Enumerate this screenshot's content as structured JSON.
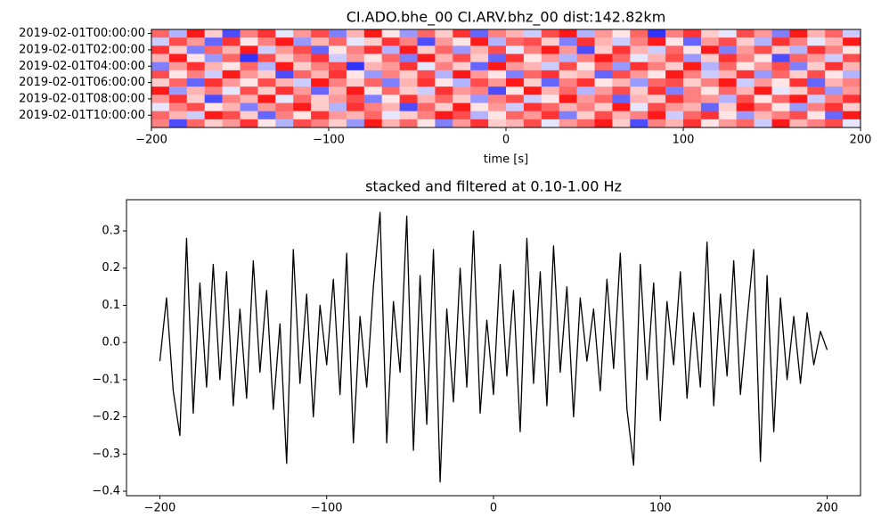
{
  "chart_data": [
    {
      "type": "heatmap",
      "title": "CI.ADO.bhe_00 CI.ARV.bhz_00  dist:142.82km",
      "xlabel": "time [s]",
      "xlim": [
        -200,
        200
      ],
      "xticks": [
        {
          "value": -200,
          "label": "−200"
        },
        {
          "value": -100,
          "label": "−100"
        },
        0,
        100,
        200
      ],
      "rows": [
        "2019-02-01T00:00:00",
        null,
        "2019-02-01T02:00:00",
        null,
        "2019-02-01T04:00:00",
        null,
        "2019-02-01T06:00:00",
        null,
        "2019-02-01T08:00:00",
        null,
        "2019-02-01T10:00:00",
        null
      ],
      "x": [
        -195,
        -185,
        -175,
        -165,
        -155,
        -145,
        -135,
        -125,
        -115,
        -105,
        -95,
        -85,
        -75,
        -65,
        -55,
        -45,
        -35,
        -25,
        -15,
        -5,
        5,
        15,
        25,
        35,
        45,
        55,
        65,
        75,
        85,
        95,
        105,
        115,
        125,
        135,
        145,
        155,
        165,
        175,
        185,
        195
      ],
      "zlim": [
        -1,
        1
      ],
      "colormap": [
        "#0000ff",
        "#ffffff",
        "#ff0000"
      ],
      "z": [
        [
          0.6,
          -0.3,
          0.9,
          0.2,
          -0.7,
          0.5,
          0.8,
          -0.1,
          0.4,
          0.7,
          -0.5,
          0.3,
          0.9,
          0.1,
          -0.4,
          0.6,
          0.2,
          0.8,
          -0.6,
          0.5,
          0.3,
          -0.2,
          0.7,
          0.9,
          -0.3,
          0.4,
          0.1,
          0.6,
          -0.8,
          0.5,
          0.8,
          0.2,
          -0.1,
          0.7,
          0.4,
          -0.5,
          0.9,
          0.3,
          0.6,
          -0.2
        ],
        [
          -0.2,
          0.7,
          0.4,
          -0.6,
          0.8,
          0.1,
          0.5,
          0.9,
          -0.4,
          0.3,
          0.6,
          -0.1,
          0.2,
          0.8,
          0.5,
          -0.7,
          0.4,
          0.1,
          0.9,
          -0.3,
          0.6,
          0.7,
          0.2,
          -0.5,
          0.8,
          0.3,
          -0.2,
          0.5,
          0.9,
          0.1,
          -0.6,
          0.4,
          0.7,
          0.2,
          -0.3,
          0.8,
          0.5,
          -0.1,
          0.3,
          0.9
        ],
        [
          0.8,
          0.2,
          -0.5,
          0.6,
          0.3,
          0.9,
          -0.2,
          0.4,
          0.7,
          -0.6,
          0.1,
          0.5,
          0.8,
          -0.3,
          0.9,
          0.2,
          0.6,
          -0.4,
          0.3,
          0.7,
          -0.1,
          0.5,
          0.9,
          0.4,
          -0.7,
          0.2,
          0.8,
          0.3,
          -0.2,
          0.6,
          0.1,
          0.9,
          -0.5,
          0.4,
          0.7,
          0.2,
          -0.3,
          0.8,
          0.5,
          0.1
        ],
        [
          0.3,
          0.9,
          0.1,
          -0.4,
          0.6,
          -0.8,
          0.7,
          0.2,
          0.5,
          0.8,
          -0.2,
          0.4,
          0.1,
          0.6,
          -0.5,
          0.9,
          0.3,
          0.7,
          0.2,
          -0.6,
          0.8,
          0.1,
          0.4,
          -0.3,
          0.5,
          0.9,
          0.6,
          -0.1,
          0.3,
          0.7,
          -0.4,
          0.2,
          0.8,
          0.5,
          0.1,
          -0.7,
          0.6,
          0.4,
          -0.2,
          0.7
        ],
        [
          -0.5,
          0.4,
          0.8,
          0.3,
          0.1,
          0.6,
          -0.3,
          0.9,
          0.2,
          0.5,
          0.7,
          -0.8,
          0.3,
          0.4,
          0.8,
          -0.1,
          0.5,
          0.2,
          -0.6,
          0.9,
          0.4,
          0.3,
          -0.2,
          0.7,
          0.1,
          0.6,
          -0.4,
          0.8,
          0.5,
          0.2,
          0.9,
          -0.3,
          0.6,
          0.1,
          0.4,
          0.7,
          -0.5,
          0.2,
          0.8,
          0.3
        ],
        [
          0.7,
          0.1,
          0.5,
          -0.2,
          0.9,
          0.4,
          0.2,
          -0.7,
          0.6,
          0.3,
          0.8,
          0.1,
          -0.4,
          0.5,
          0.2,
          0.7,
          -0.3,
          0.9,
          0.4,
          0.1,
          -0.5,
          0.6,
          0.8,
          0.2,
          0.3,
          -0.6,
          0.7,
          0.4,
          0.1,
          0.9,
          0.5,
          -0.2,
          0.3,
          0.8,
          -0.4,
          0.6,
          0.2,
          0.7,
          0.1,
          -0.3
        ],
        [
          0.2,
          0.6,
          -0.6,
          0.8,
          0.4,
          0.1,
          0.7,
          0.3,
          -0.2,
          0.9,
          0.5,
          0.2,
          0.6,
          -0.5,
          0.3,
          0.8,
          0.1,
          -0.3,
          0.7,
          0.4,
          0.9,
          0.2,
          -0.6,
          0.5,
          0.8,
          0.1,
          0.3,
          -0.4,
          0.6,
          0.7,
          0.2,
          0.5,
          0.9,
          -0.2,
          0.4,
          0.1,
          0.8,
          -0.6,
          0.3,
          0.5
        ],
        [
          0.9,
          -0.4,
          0.3,
          0.5,
          -0.1,
          0.7,
          0.2,
          0.8,
          0.4,
          -0.6,
          0.3,
          0.9,
          0.1,
          0.6,
          0.2,
          -0.2,
          0.8,
          0.4,
          0.5,
          -0.7,
          0.1,
          0.9,
          0.3,
          0.6,
          -0.3,
          0.4,
          0.7,
          0.2,
          0.8,
          -0.5,
          0.5,
          0.1,
          0.6,
          0.3,
          0.9,
          -0.1,
          0.2,
          0.7,
          -0.4,
          0.4
        ],
        [
          0.4,
          0.8,
          0.2,
          -0.7,
          0.5,
          0.3,
          0.9,
          -0.1,
          0.6,
          0.2,
          0.4,
          0.7,
          -0.5,
          0.1,
          0.8,
          0.3,
          0.6,
          0.2,
          -0.4,
          0.5,
          0.7,
          -0.2,
          0.1,
          0.9,
          0.4,
          0.6,
          -0.6,
          0.3,
          0.2,
          0.8,
          0.5,
          0.4,
          -0.3,
          0.7,
          0.1,
          0.6,
          0.9,
          -0.2,
          0.5,
          0.8
        ],
        [
          -0.1,
          0.5,
          0.7,
          0.1,
          0.3,
          -0.5,
          0.4,
          0.6,
          0.9,
          0.2,
          -0.3,
          0.8,
          0.5,
          0.3,
          -0.7,
          0.6,
          0.2,
          0.9,
          0.1,
          0.4,
          -0.2,
          0.8,
          0.6,
          0.3,
          0.5,
          0.2,
          0.9,
          -0.1,
          0.7,
          0.4,
          0.3,
          -0.6,
          0.2,
          0.9,
          0.6,
          0.1,
          -0.4,
          0.5,
          0.8,
          0.2
        ],
        [
          0.6,
          0.3,
          -0.2,
          0.9,
          0.7,
          0.2,
          -0.6,
          0.5,
          0.1,
          0.8,
          0.4,
          0.3,
          0.6,
          -0.1,
          0.2,
          0.5,
          0.9,
          0.7,
          -0.3,
          0.1,
          0.6,
          0.4,
          0.8,
          -0.5,
          0.2,
          0.7,
          0.3,
          0.5,
          0.9,
          -0.2,
          0.6,
          0.8,
          0.1,
          -0.4,
          0.3,
          0.5,
          0.7,
          0.1,
          -0.6,
          0.9
        ],
        [
          0.5,
          -0.7,
          0.6,
          0.2,
          0.4,
          0.8,
          0.1,
          -0.3,
          0.7,
          0.5,
          0.2,
          -0.4,
          0.9,
          0.3,
          0.6,
          0.1,
          -0.5,
          0.4,
          0.8,
          0.2,
          0.3,
          0.7,
          -0.1,
          0.4,
          0.6,
          0.9,
          0.2,
          -0.7,
          0.5,
          0.3,
          0.8,
          0.1,
          0.4,
          0.6,
          -0.2,
          0.9,
          0.3,
          0.5,
          0.7,
          -0.1
        ]
      ]
    },
    {
      "type": "line",
      "title": "stacked and filtered at 0.10-1.00 Hz",
      "color": "#000000",
      "xlim": [
        -220,
        220
      ],
      "ylim": [
        -0.412,
        0.384
      ],
      "xticks": [
        {
          "value": -200,
          "label": "−200"
        },
        {
          "value": -100,
          "label": "−100"
        },
        0,
        100,
        200
      ],
      "yticks": [
        {
          "value": -0.4,
          "label": "−0.4"
        },
        {
          "value": -0.3,
          "label": "−0.3"
        },
        {
          "value": -0.2,
          "label": "−0.2"
        },
        {
          "value": -0.1,
          "label": "−0.1"
        },
        {
          "value": 0,
          "label": "0.0"
        },
        0.1,
        0.2,
        0.3
      ],
      "x": [
        -200,
        -196,
        -192,
        -188,
        -184,
        -180,
        -176,
        -172,
        -168,
        -164,
        -160,
        -156,
        -152,
        -148,
        -144,
        -140,
        -136,
        -132,
        -128,
        -124,
        -120,
        -116,
        -112,
        -108,
        -104,
        -100,
        -96,
        -92,
        -88,
        -84,
        -80,
        -76,
        -72,
        -68,
        -64,
        -60,
        -56,
        -52,
        -48,
        -44,
        -40,
        -36,
        -32,
        -28,
        -24,
        -20,
        -16,
        -12,
        -8,
        -4,
        0,
        4,
        8,
        12,
        16,
        20,
        24,
        28,
        32,
        36,
        40,
        44,
        48,
        52,
        56,
        60,
        64,
        68,
        72,
        76,
        80,
        84,
        88,
        92,
        96,
        100,
        104,
        108,
        112,
        116,
        120,
        124,
        128,
        132,
        136,
        140,
        144,
        148,
        152,
        156,
        160,
        164,
        168,
        172,
        176,
        180,
        184,
        188,
        192,
        196,
        200
      ],
      "values": [
        -0.05,
        0.12,
        -0.13,
        -0.25,
        0.28,
        -0.19,
        0.16,
        -0.12,
        0.21,
        -0.1,
        0.19,
        -0.17,
        0.09,
        -0.15,
        0.22,
        -0.08,
        0.14,
        -0.18,
        0.05,
        -0.325,
        0.25,
        -0.11,
        0.13,
        -0.2,
        0.1,
        -0.06,
        0.17,
        -0.14,
        0.24,
        -0.27,
        0.07,
        -0.12,
        0.15,
        0.35,
        -0.27,
        0.11,
        -0.08,
        0.34,
        -0.29,
        0.18,
        -0.22,
        0.25,
        -0.375,
        0.09,
        -0.16,
        0.2,
        -0.12,
        0.3,
        -0.19,
        0.06,
        -0.14,
        0.21,
        -0.09,
        0.14,
        -0.24,
        0.28,
        -0.11,
        0.19,
        -0.17,
        0.26,
        -0.08,
        0.15,
        -0.2,
        0.12,
        -0.05,
        0.09,
        -0.13,
        0.17,
        -0.07,
        0.24,
        -0.18,
        -0.33,
        0.21,
        -0.1,
        0.16,
        -0.21,
        0.11,
        -0.06,
        0.19,
        -0.15,
        0.08,
        -0.12,
        0.27,
        -0.17,
        0.13,
        -0.09,
        0.22,
        -0.14,
        0.06,
        0.25,
        -0.32,
        0.18,
        -0.24,
        0.12,
        -0.1,
        0.07,
        -0.11,
        0.08,
        -0.06,
        0.03,
        -0.02
      ]
    }
  ]
}
